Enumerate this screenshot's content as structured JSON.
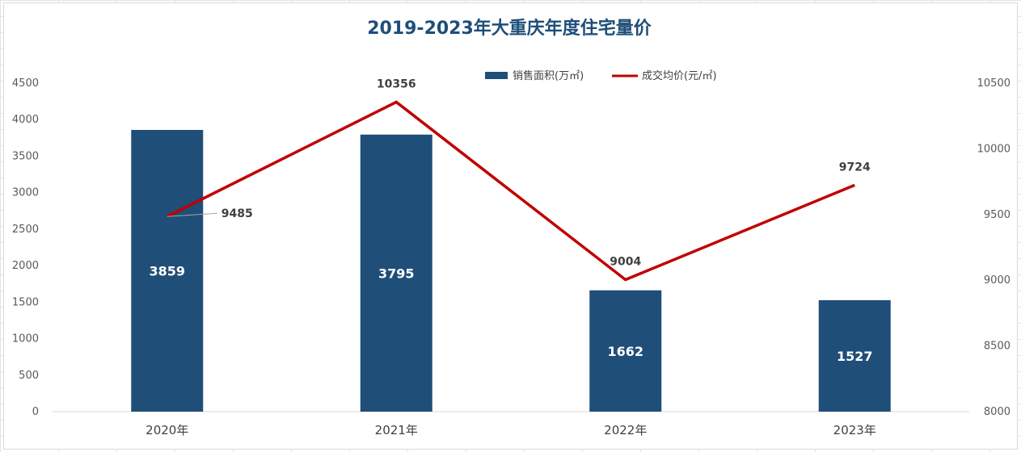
{
  "chart_data": {
    "type": "bar",
    "title": "2019-2023年大重庆年度住宅量价",
    "categories": [
      "2020年",
      "2021年",
      "2022年",
      "2023年"
    ],
    "series": [
      {
        "name": "销售面积(万㎡)",
        "type": "bar",
        "axis": "left",
        "values": [
          3859,
          3795,
          1662,
          1527
        ],
        "color": "#1f4e79"
      },
      {
        "name": "成交均价(元/㎡)",
        "type": "line",
        "axis": "right",
        "values": [
          9485,
          10356,
          9004,
          9724
        ],
        "color": "#c00000"
      }
    ],
    "y_left": {
      "min": 0,
      "max": 4500,
      "ticks": [
        "0",
        "500",
        "1000",
        "1500",
        "2000",
        "2500",
        "3000",
        "3500",
        "4000",
        "4500"
      ]
    },
    "y_right": {
      "min": 8000,
      "max": 10500,
      "ticks": [
        "8000",
        "8500",
        "9000",
        "9500",
        "10000",
        "10500"
      ]
    },
    "legend_position": "top",
    "grid": false
  }
}
